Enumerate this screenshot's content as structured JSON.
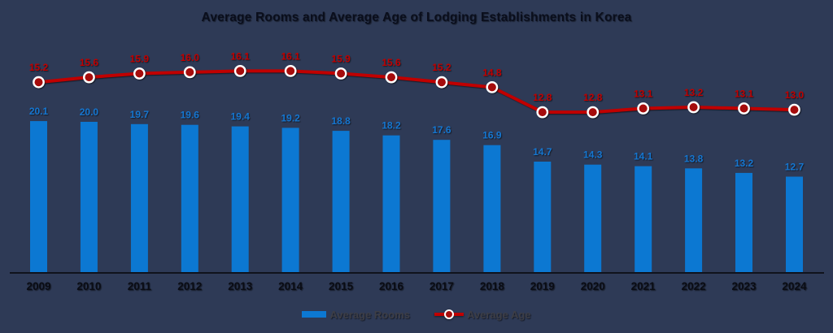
{
  "colors": {
    "background": "#2e3a56",
    "bar": "#0c78d2",
    "bar_label": "#1576d0",
    "line": "#c00000",
    "line_label": "#c00000",
    "marker_fill": "#a50c0c",
    "marker_stroke": "#ffffff",
    "axis": "#10131c",
    "year_label": "#0a0c14",
    "title_color": "#0a0e1c",
    "legend_text": "#3d3e46"
  },
  "chart_data": {
    "type": "combo",
    "title": "Average Rooms and Average Age of Lodging Establishments in Korea",
    "categories": [
      "2009",
      "2010",
      "2011",
      "2012",
      "2013",
      "2014",
      "2015",
      "2016",
      "2017",
      "2018",
      "2019",
      "2020",
      "2021",
      "2022",
      "2023",
      "2024"
    ],
    "series": [
      {
        "name": "Average Rooms",
        "type": "bar",
        "color": "#0c78d2",
        "values": [
          20.1,
          20.0,
          19.7,
          19.6,
          19.4,
          19.2,
          18.8,
          18.2,
          17.6,
          16.9,
          14.7,
          14.3,
          14.1,
          13.8,
          13.2,
          12.7
        ]
      },
      {
        "name": "Average Age",
        "type": "line",
        "color": "#c00000",
        "marker": "circle-white-ring",
        "values": [
          15.2,
          15.6,
          15.9,
          16.0,
          16.1,
          16.1,
          15.9,
          15.6,
          15.2,
          14.8,
          12.8,
          12.8,
          13.1,
          13.2,
          13.1,
          13.0
        ]
      }
    ],
    "xlabel": "",
    "ylabel": "",
    "value_axis_visible": false,
    "grid": false,
    "data_labels": true,
    "legend_position": "bottom"
  }
}
